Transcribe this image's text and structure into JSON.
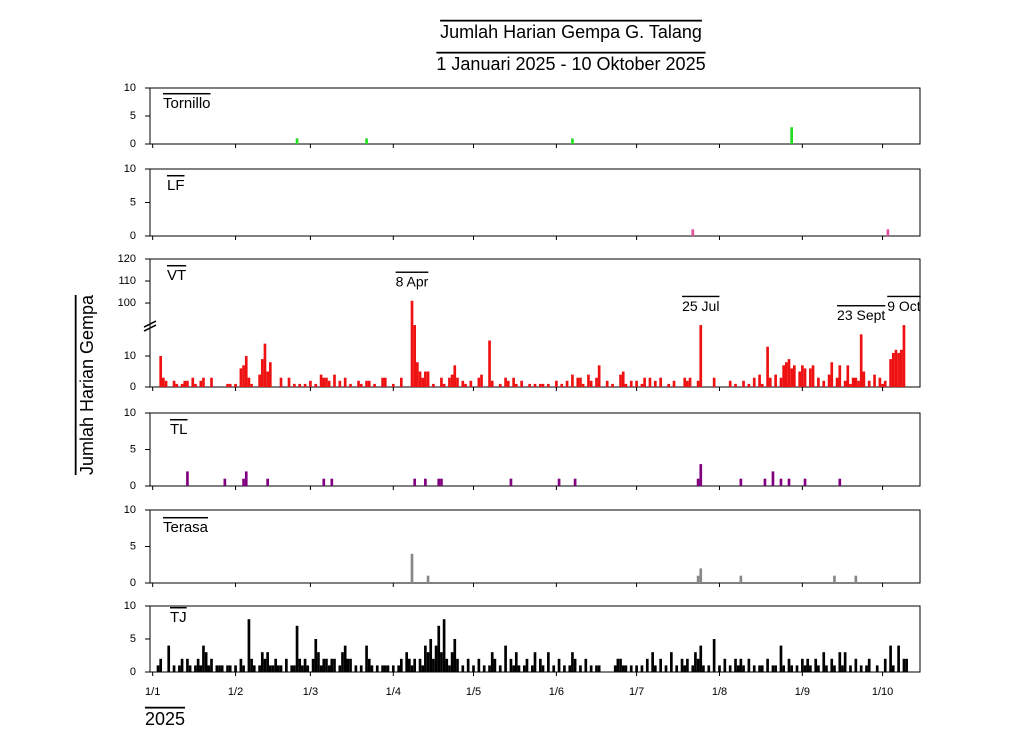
{
  "page": {
    "title": "Jumlah Harian Gempa G. Talang",
    "subtitle": "1 Januari 2025 - 10 Oktober 2025",
    "ylabel": "Jumlah Harian Gempa",
    "xlabel": "2025"
  },
  "chart_data": [
    {
      "type": "bar",
      "title": "Tornillo",
      "color": "#22dd22",
      "xlim": [
        -1,
        287
      ],
      "ylim": [
        0,
        10
      ],
      "yticks": [
        0,
        5,
        10
      ],
      "x": [
        54,
        80,
        157,
        239
      ],
      "values": [
        1,
        1,
        1,
        3
      ]
    },
    {
      "type": "bar",
      "title": "LF",
      "color": "#e0509a",
      "xlim": [
        -1,
        287
      ],
      "ylim": [
        0,
        10
      ],
      "yticks": [
        0,
        5,
        10
      ],
      "x": [
        202,
        275
      ],
      "values": [
        1,
        1
      ]
    },
    {
      "type": "bar",
      "title": "VT",
      "color": "#ee1111",
      "xlim": [
        -1,
        287
      ],
      "ylim": [
        0,
        120
      ],
      "ybreak": [
        20,
        90
      ],
      "yticks": [
        0,
        10,
        100,
        110,
        120
      ],
      "x": [
        3,
        4,
        5,
        8,
        9,
        11,
        12,
        13,
        15,
        16,
        18,
        19,
        22,
        28,
        29,
        31,
        33,
        34,
        35,
        36,
        37,
        40,
        41,
        42,
        43,
        44,
        48,
        51,
        53,
        55,
        57,
        59,
        61,
        63,
        64,
        65,
        66,
        68,
        70,
        72,
        74,
        77,
        78,
        80,
        81,
        83,
        86,
        87,
        90,
        93,
        97,
        98,
        99,
        100,
        101,
        102,
        103,
        105,
        108,
        109,
        111,
        112,
        113,
        114,
        116,
        117,
        119,
        122,
        123,
        126,
        127,
        130,
        132,
        133,
        135,
        136,
        138,
        141,
        143,
        145,
        146,
        148,
        151,
        153,
        155,
        157,
        159,
        160,
        161,
        163,
        164,
        166,
        167,
        170,
        172,
        175,
        176,
        177,
        179,
        181,
        183,
        184,
        186,
        188,
        190,
        193,
        195,
        199,
        200,
        201,
        204,
        205,
        210,
        216,
        218,
        221,
        223,
        225,
        227,
        228,
        230,
        231,
        233,
        235,
        236,
        237,
        238,
        239,
        240,
        242,
        243,
        244,
        246,
        247,
        249,
        251,
        253,
        254,
        256,
        257,
        259,
        260,
        261,
        262,
        263,
        264,
        265,
        266,
        268,
        270,
        272,
        273,
        274,
        276,
        277,
        278,
        279,
        280,
        281
      ],
      "values": [
        10,
        3,
        2,
        2,
        1,
        1,
        2,
        2,
        3,
        1,
        2,
        3,
        3,
        1,
        1,
        1,
        6,
        7,
        10,
        3,
        1,
        4,
        9,
        14,
        5,
        8,
        3,
        3,
        1,
        1,
        1,
        2,
        1,
        4,
        3,
        3,
        2,
        4,
        2,
        3,
        1,
        2,
        1,
        2,
        2,
        1,
        3,
        3,
        1,
        3,
        101,
        20,
        8,
        5,
        3,
        5,
        5,
        1,
        3,
        1,
        3,
        4,
        7,
        3,
        2,
        1,
        2,
        3,
        4,
        15,
        2,
        1,
        3,
        2,
        3,
        1,
        2,
        1,
        1,
        1,
        1,
        1,
        2,
        1,
        2,
        4,
        3,
        3,
        1,
        4,
        2,
        3,
        7,
        2,
        1,
        4,
        5,
        1,
        2,
        2,
        1,
        3,
        3,
        2,
        3,
        1,
        2,
        3,
        2,
        3,
        2,
        20,
        3,
        2,
        1,
        2,
        1,
        3,
        4,
        1,
        13,
        3,
        4,
        3,
        7,
        8,
        9,
        6,
        7,
        5,
        7,
        6,
        6,
        7,
        3,
        2,
        4,
        8,
        3,
        7,
        2,
        7,
        1,
        3,
        3,
        2,
        17,
        5,
        2,
        4,
        3,
        1,
        2,
        9,
        11,
        12,
        11,
        12,
        20
      ],
      "annotations": [
        {
          "text": "8 Apr",
          "x": 97
        },
        {
          "text": "25 Jul",
          "x": 205
        },
        {
          "text": "23 Sept",
          "x": 265
        },
        {
          "text": "9 Oct",
          "x": 281
        }
      ]
    },
    {
      "type": "bar",
      "title": "TL",
      "color": "#800080",
      "xlim": [
        -1,
        287
      ],
      "ylim": [
        0,
        10
      ],
      "yticks": [
        0,
        5,
        10
      ],
      "x": [
        13,
        27,
        34,
        35,
        43,
        64,
        67,
        98,
        102,
        107,
        108,
        134,
        152,
        158,
        204,
        205,
        220,
        229,
        232,
        235,
        238,
        244,
        257
      ],
      "values": [
        2,
        1,
        1,
        2,
        1,
        1,
        1,
        1,
        1,
        1,
        1,
        1,
        1,
        1,
        1,
        3,
        1,
        1,
        2,
        1,
        1,
        1,
        1
      ]
    },
    {
      "type": "bar",
      "title": "Terasa",
      "color": "#888888",
      "xlim": [
        -1,
        287
      ],
      "ylim": [
        0,
        10
      ],
      "yticks": [
        0,
        5,
        10
      ],
      "x": [
        97,
        103,
        204,
        205,
        220,
        255,
        263
      ],
      "values": [
        4,
        1,
        1,
        2,
        1,
        1,
        1
      ]
    },
    {
      "type": "bar",
      "title": "TJ",
      "color": "#000000",
      "xlim": [
        -1,
        287
      ],
      "ylim": [
        0,
        10
      ],
      "yticks": [
        0,
        5,
        10
      ],
      "xticks": [
        {
          "value": 0,
          "label": "1/1"
        },
        {
          "value": 31,
          "label": "1/2"
        },
        {
          "value": 59,
          "label": "1/3"
        },
        {
          "value": 90,
          "label": "1/4"
        },
        {
          "value": 120,
          "label": "1/5"
        },
        {
          "value": 151,
          "label": "1/6"
        },
        {
          "value": 181,
          "label": "1/7"
        },
        {
          "value": 212,
          "label": "1/8"
        },
        {
          "value": 243,
          "label": "1/9"
        },
        {
          "value": 273,
          "label": "1/10"
        }
      ],
      "x": [
        2,
        3,
        6,
        8,
        10,
        11,
        13,
        14,
        16,
        17,
        18,
        19,
        20,
        21,
        22,
        24,
        25,
        26,
        28,
        29,
        31,
        33,
        34,
        36,
        37,
        38,
        40,
        41,
        42,
        43,
        44,
        45,
        46,
        47,
        48,
        50,
        52,
        53,
        54,
        55,
        56,
        57,
        58,
        60,
        61,
        62,
        63,
        64,
        65,
        66,
        67,
        68,
        70,
        71,
        72,
        73,
        74,
        76,
        78,
        80,
        81,
        82,
        84,
        86,
        87,
        88,
        90,
        92,
        93,
        95,
        96,
        97,
        98,
        100,
        101,
        102,
        103,
        104,
        105,
        106,
        107,
        108,
        109,
        110,
        111,
        112,
        113,
        114,
        116,
        118,
        120,
        122,
        124,
        126,
        127,
        128,
        130,
        132,
        134,
        135,
        136,
        137,
        139,
        140,
        142,
        143,
        145,
        146,
        148,
        150,
        152,
        154,
        156,
        157,
        158,
        160,
        162,
        164,
        166,
        167,
        173,
        174,
        175,
        176,
        177,
        179,
        181,
        183,
        185,
        187,
        188,
        190,
        192,
        194,
        196,
        198,
        199,
        200,
        202,
        203,
        204,
        205,
        206,
        208,
        210,
        212,
        214,
        216,
        218,
        219,
        220,
        221,
        223,
        225,
        227,
        228,
        230,
        232,
        233,
        235,
        236,
        238,
        239,
        241,
        243,
        244,
        245,
        246,
        248,
        249,
        251,
        252,
        254,
        255,
        257,
        258,
        259,
        261,
        263,
        265,
        267,
        268,
        271,
        274,
        276,
        277,
        279,
        281,
        282
      ],
      "values": [
        1,
        2,
        4,
        1,
        1,
        2,
        2,
        1,
        1,
        2,
        1,
        4,
        3,
        1,
        2,
        1,
        1,
        1,
        1,
        1,
        1,
        2,
        1,
        8,
        2,
        1,
        1,
        3,
        2,
        3,
        1,
        1,
        2,
        1,
        1,
        2,
        1,
        1,
        7,
        2,
        1,
        2,
        1,
        2,
        5,
        3,
        1,
        2,
        2,
        1,
        2,
        2,
        1,
        3,
        4,
        2,
        2,
        1,
        1,
        4,
        2,
        1,
        1,
        1,
        1,
        1,
        1,
        1,
        2,
        3,
        2,
        1,
        2,
        2,
        1,
        4,
        3,
        5,
        2,
        4,
        7,
        3,
        8,
        2,
        1,
        3,
        5,
        2,
        1,
        2,
        1,
        2,
        1,
        1,
        3,
        2,
        1,
        4,
        2,
        1,
        3,
        1,
        1,
        2,
        1,
        3,
        2,
        1,
        3,
        1,
        2,
        1,
        1,
        3,
        2,
        1,
        2,
        1,
        1,
        1,
        1,
        2,
        2,
        1,
        1,
        1,
        1,
        1,
        2,
        3,
        1,
        2,
        1,
        3,
        1,
        2,
        1,
        2,
        1,
        3,
        2,
        4,
        1,
        1,
        5,
        1,
        2,
        1,
        2,
        1,
        2,
        1,
        2,
        1,
        1,
        1,
        2,
        1,
        1,
        4,
        1,
        2,
        1,
        1,
        2,
        1,
        2,
        1,
        2,
        1,
        3,
        1,
        2,
        1,
        3,
        1,
        3,
        1,
        2,
        1,
        1,
        2,
        1,
        2,
        4,
        1,
        4,
        2,
        2
      ]
    }
  ]
}
